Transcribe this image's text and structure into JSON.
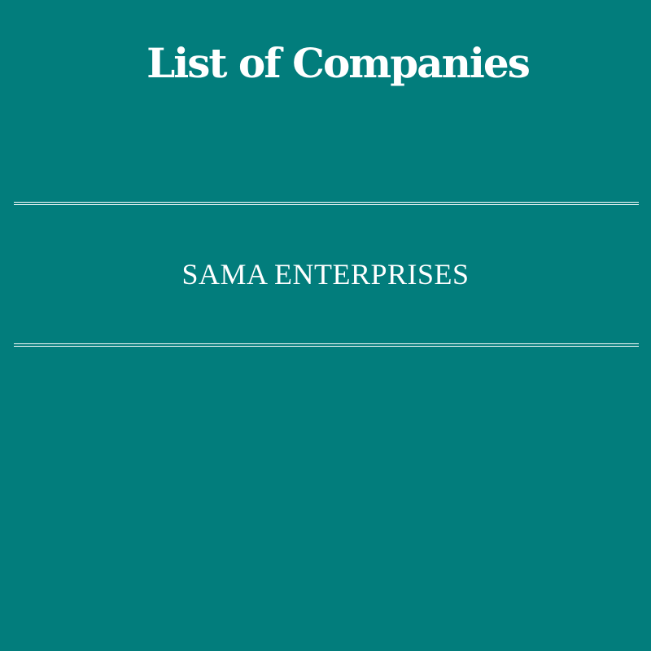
{
  "page": {
    "title": "List of Companies",
    "background_color": "#027d7c",
    "text_color": "#ffffff"
  },
  "companies": [
    "SAMA ENTERPRISES"
  ]
}
